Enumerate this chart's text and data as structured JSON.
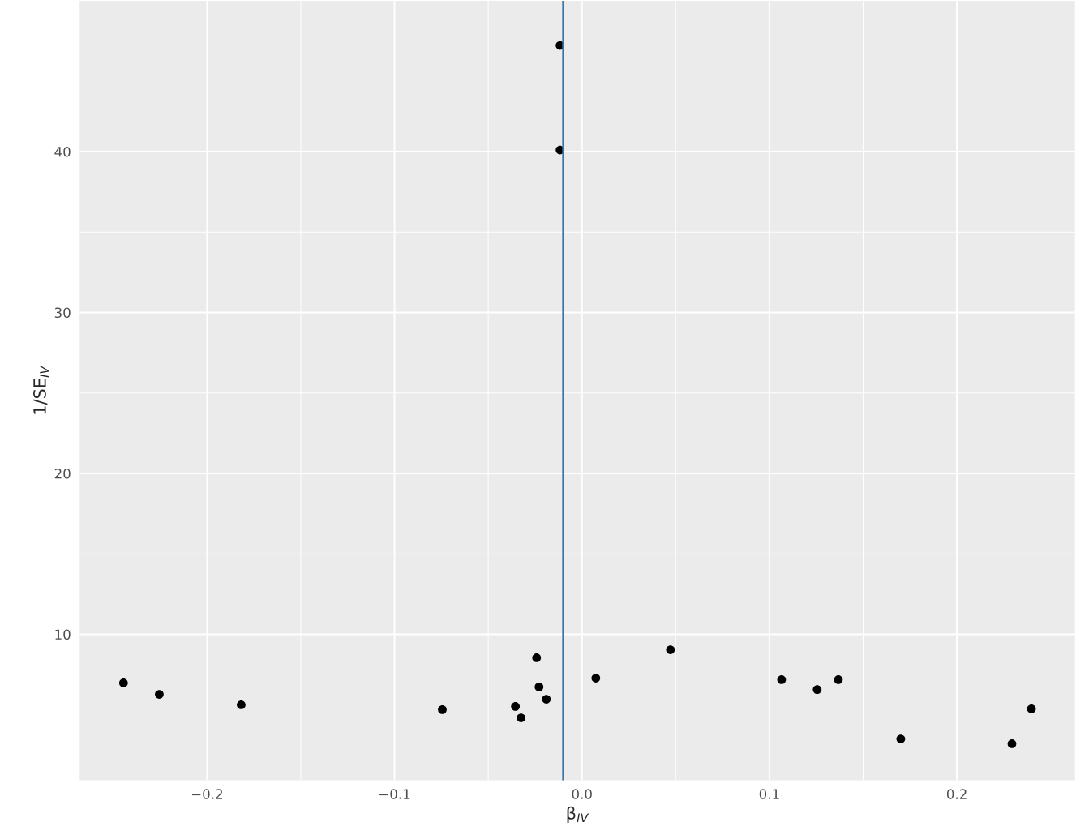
{
  "chart_data": {
    "type": "scatter",
    "xlabel": "β$_{IV}$",
    "ylabel": "1/SE$_{IV}$",
    "x": [
      -0.2446,
      -0.2255,
      -0.1818,
      -0.0745,
      -0.0355,
      -0.0325,
      -0.0242,
      -0.0229,
      -0.019,
      -0.0117,
      -0.0117,
      0.0074,
      0.0472,
      0.1065,
      0.1255,
      0.1368,
      0.1701,
      0.2294,
      0.2398
    ],
    "series": [
      {
        "color": "#000000",
        "values": [
          6.98,
          6.27,
          5.62,
          5.32,
          5.52,
          4.81,
          8.54,
          6.73,
          5.97,
          46.6,
          40.1,
          7.28,
          9.04,
          7.18,
          6.57,
          7.18,
          3.5,
          3.2,
          5.37
        ]
      }
    ],
    "xlim": [
      -0.268,
      0.263
    ],
    "ylim": [
      0.93,
      49.37
    ],
    "xticks": [
      {
        "value": -0.2,
        "label": "−0.2"
      },
      {
        "value": -0.1,
        "label": "−0.1"
      },
      {
        "value": 0.0,
        "label": "0.0"
      },
      {
        "value": 0.1,
        "label": "0.1"
      },
      {
        "value": 0.2,
        "label": "0.2"
      }
    ],
    "yticks": [
      10,
      20,
      30,
      40
    ],
    "ref_lines": [
      {
        "axis": "x",
        "value": -0.01,
        "color": "#2a7ab9"
      }
    ],
    "grid": true,
    "marker": "circle"
  }
}
